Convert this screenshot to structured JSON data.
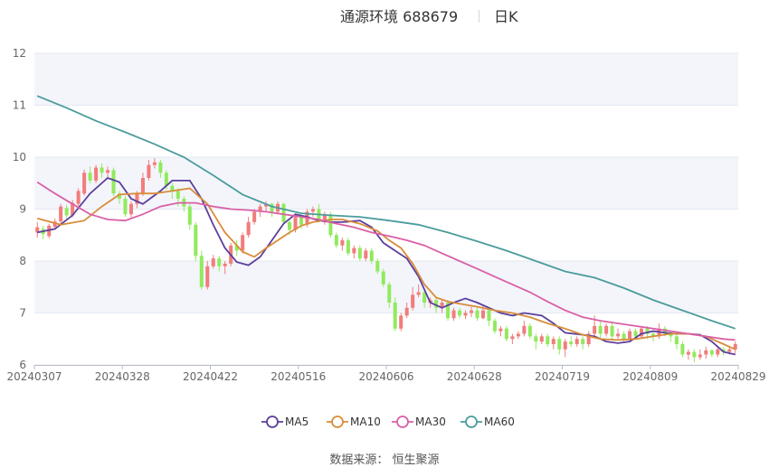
{
  "header": {
    "title": "通源环境 688679",
    "period": "日K"
  },
  "source_text": "数据来源： 恒生聚源",
  "colors": {
    "up": "#f27c7c",
    "down": "#91ea5e",
    "band": "#f3f5fb",
    "grid": "#e4e8f2",
    "ma5": "#5b3f9c",
    "ma10": "#d98c3a",
    "ma30": "#d960a6",
    "ma60": "#4b9c9c"
  },
  "chart_data": {
    "type": "candlestick",
    "ylim": [
      6,
      12
    ],
    "yticks": [
      6,
      7,
      8,
      9,
      10,
      11,
      12
    ],
    "xticks": [
      "20240307",
      "20240328",
      "20240422",
      "20240516",
      "20240606",
      "20240628",
      "20240719",
      "20240809",
      "20240829"
    ],
    "num_days": 120,
    "candles": [
      [
        8.55,
        8.65,
        8.75,
        8.45
      ],
      [
        8.62,
        8.52,
        8.68,
        8.42
      ],
      [
        8.48,
        8.68,
        8.72,
        8.44
      ],
      [
        8.66,
        8.76,
        8.82,
        8.6
      ],
      [
        8.76,
        9.05,
        9.1,
        8.72
      ],
      [
        9.02,
        8.88,
        9.08,
        8.82
      ],
      [
        8.88,
        9.12,
        9.18,
        8.84
      ],
      [
        9.1,
        9.35,
        9.4,
        9.06
      ],
      [
        9.3,
        9.7,
        9.76,
        9.26
      ],
      [
        9.7,
        9.55,
        9.82,
        9.5
      ],
      [
        9.55,
        9.8,
        9.85,
        9.5
      ],
      [
        9.8,
        9.7,
        9.88,
        9.6
      ],
      [
        9.7,
        9.75,
        9.82,
        9.6
      ],
      [
        9.75,
        9.3,
        9.8,
        9.25
      ],
      [
        9.3,
        9.2,
        9.35,
        9.1
      ],
      [
        9.2,
        8.9,
        9.25,
        8.85
      ],
      [
        8.9,
        9.1,
        9.15,
        8.84
      ],
      [
        9.1,
        9.3,
        9.35,
        9.02
      ],
      [
        9.3,
        9.6,
        9.7,
        9.25
      ],
      [
        9.6,
        9.85,
        9.95,
        9.55
      ],
      [
        9.85,
        9.9,
        9.98,
        9.78
      ],
      [
        9.9,
        9.7,
        9.95,
        9.6
      ],
      [
        9.7,
        9.45,
        9.75,
        9.38
      ],
      [
        9.45,
        9.35,
        9.5,
        9.2
      ],
      [
        9.35,
        9.2,
        9.4,
        9.05
      ],
      [
        9.2,
        9.05,
        9.25,
        8.95
      ],
      [
        9.05,
        8.7,
        9.1,
        8.6
      ],
      [
        8.7,
        8.1,
        8.75,
        8.0
      ],
      [
        8.1,
        7.5,
        8.2,
        7.45
      ],
      [
        7.5,
        7.9,
        8.0,
        7.45
      ],
      [
        7.9,
        8.05,
        8.12,
        7.85
      ],
      [
        8.05,
        7.9,
        8.1,
        7.8
      ],
      [
        7.9,
        7.95,
        8.0,
        7.75
      ],
      [
        7.95,
        8.3,
        8.35,
        7.9
      ],
      [
        8.3,
        8.2,
        8.4,
        8.1
      ],
      [
        8.2,
        8.5,
        8.55,
        8.15
      ],
      [
        8.5,
        8.75,
        8.85,
        8.45
      ],
      [
        8.75,
        8.95,
        9.0,
        8.7
      ],
      [
        8.95,
        9.05,
        9.1,
        8.85
      ],
      [
        9.05,
        9.1,
        9.15,
        8.95
      ],
      [
        9.1,
        8.95,
        9.12,
        8.85
      ],
      [
        8.95,
        9.1,
        9.15,
        8.9
      ],
      [
        9.1,
        8.75,
        9.12,
        8.7
      ],
      [
        8.75,
        8.6,
        8.8,
        8.5
      ],
      [
        8.6,
        8.85,
        8.9,
        8.55
      ],
      [
        8.85,
        8.7,
        8.9,
        8.62
      ],
      [
        8.7,
        8.95,
        9.0,
        8.65
      ],
      [
        8.95,
        9.0,
        9.05,
        8.85
      ],
      [
        9.0,
        8.8,
        9.1,
        8.75
      ],
      [
        8.8,
        8.9,
        8.95,
        8.7
      ],
      [
        8.9,
        8.5,
        8.95,
        8.45
      ],
      [
        8.5,
        8.3,
        8.55,
        8.25
      ],
      [
        8.3,
        8.4,
        8.45,
        8.2
      ],
      [
        8.4,
        8.15,
        8.45,
        8.1
      ],
      [
        8.15,
        8.25,
        8.3,
        8.05
      ],
      [
        8.25,
        8.05,
        8.3,
        8.0
      ],
      [
        8.05,
        8.2,
        8.25,
        8.0
      ],
      [
        8.2,
        8.0,
        8.25,
        7.95
      ],
      [
        8.0,
        7.8,
        8.05,
        7.75
      ],
      [
        7.8,
        7.55,
        7.85,
        7.5
      ],
      [
        7.55,
        7.2,
        7.6,
        7.1
      ],
      [
        7.2,
        6.7,
        7.3,
        6.65
      ],
      [
        6.7,
        6.95,
        7.0,
        6.65
      ],
      [
        6.95,
        7.1,
        7.2,
        6.9
      ],
      [
        7.1,
        7.35,
        7.5,
        7.05
      ],
      [
        7.35,
        7.4,
        7.55,
        7.3
      ],
      [
        7.4,
        7.2,
        7.45,
        7.1
      ],
      [
        7.2,
        7.25,
        7.3,
        7.1
      ],
      [
        7.25,
        7.1,
        7.3,
        7.0
      ],
      [
        7.1,
        7.2,
        7.25,
        7.0
      ],
      [
        7.2,
        6.9,
        7.25,
        6.85
      ],
      [
        6.9,
        7.05,
        7.1,
        6.85
      ],
      [
        7.05,
        6.95,
        7.1,
        6.9
      ],
      [
        6.95,
        7.0,
        7.05,
        6.88
      ],
      [
        7.0,
        7.05,
        7.12,
        6.92
      ],
      [
        7.05,
        6.9,
        7.1,
        6.85
      ],
      [
        6.9,
        7.05,
        7.15,
        6.88
      ],
      [
        7.05,
        6.85,
        7.1,
        6.75
      ],
      [
        6.85,
        6.65,
        6.9,
        6.6
      ],
      [
        6.65,
        6.7,
        6.75,
        6.55
      ],
      [
        6.7,
        6.5,
        6.75,
        6.45
      ],
      [
        6.5,
        6.55,
        6.6,
        6.4
      ],
      [
        6.55,
        6.6,
        6.65,
        6.5
      ],
      [
        6.6,
        6.75,
        6.85,
        6.55
      ],
      [
        6.75,
        6.55,
        6.8,
        6.5
      ],
      [
        6.55,
        6.45,
        6.6,
        6.3
      ],
      [
        6.45,
        6.55,
        6.6,
        6.4
      ],
      [
        6.55,
        6.4,
        6.6,
        6.35
      ],
      [
        6.4,
        6.5,
        6.55,
        6.3
      ],
      [
        6.5,
        6.3,
        6.55,
        6.2
      ],
      [
        6.3,
        6.45,
        6.5,
        6.15
      ],
      [
        6.45,
        6.4,
        6.55,
        6.35
      ],
      [
        6.4,
        6.5,
        6.55,
        6.35
      ],
      [
        6.5,
        6.4,
        6.55,
        6.3
      ],
      [
        6.4,
        6.6,
        6.65,
        6.35
      ],
      [
        6.6,
        6.75,
        6.95,
        6.55
      ],
      [
        6.75,
        6.6,
        6.85,
        6.5
      ],
      [
        6.6,
        6.75,
        6.8,
        6.55
      ],
      [
        6.75,
        6.55,
        6.8,
        6.5
      ],
      [
        6.55,
        6.6,
        6.7,
        6.5
      ],
      [
        6.6,
        6.5,
        6.65,
        6.45
      ],
      [
        6.5,
        6.65,
        6.7,
        6.45
      ],
      [
        6.65,
        6.55,
        6.7,
        6.5
      ],
      [
        6.55,
        6.7,
        6.75,
        6.5
      ],
      [
        6.7,
        6.6,
        6.75,
        6.5
      ],
      [
        6.6,
        6.55,
        6.65,
        6.45
      ],
      [
        6.55,
        6.7,
        6.8,
        6.5
      ],
      [
        6.7,
        6.6,
        6.75,
        6.55
      ],
      [
        6.6,
        6.55,
        6.65,
        6.45
      ],
      [
        6.55,
        6.4,
        6.6,
        6.3
      ],
      [
        6.4,
        6.2,
        6.45,
        6.15
      ],
      [
        6.2,
        6.25,
        6.3,
        6.1
      ],
      [
        6.25,
        6.15,
        6.3,
        6.05
      ],
      [
        6.15,
        6.2,
        6.3,
        6.1
      ],
      [
        6.2,
        6.28,
        6.35,
        6.12
      ],
      [
        6.28,
        6.2,
        6.3,
        6.15
      ],
      [
        6.2,
        6.3,
        6.35,
        6.15
      ],
      [
        6.3,
        6.25,
        6.35,
        6.18
      ],
      [
        6.25,
        6.3,
        6.35,
        6.2
      ],
      [
        6.3,
        6.4,
        6.45,
        6.22
      ]
    ],
    "series": [
      {
        "name": "MA5",
        "key": "ma5",
        "points": [
          [
            0,
            8.55
          ],
          [
            3,
            8.62
          ],
          [
            6,
            8.88
          ],
          [
            9,
            9.3
          ],
          [
            12,
            9.6
          ],
          [
            14,
            9.52
          ],
          [
            16,
            9.2
          ],
          [
            18,
            9.1
          ],
          [
            21,
            9.35
          ],
          [
            23,
            9.55
          ],
          [
            26,
            9.55
          ],
          [
            28,
            9.2
          ],
          [
            30,
            8.7
          ],
          [
            32,
            8.25
          ],
          [
            34,
            7.98
          ],
          [
            36,
            7.92
          ],
          [
            38,
            8.08
          ],
          [
            40,
            8.4
          ],
          [
            42,
            8.72
          ],
          [
            44,
            8.9
          ],
          [
            46,
            8.85
          ],
          [
            48,
            8.78
          ],
          [
            50,
            8.75
          ],
          [
            52,
            8.75
          ],
          [
            55,
            8.78
          ],
          [
            57,
            8.65
          ],
          [
            59,
            8.35
          ],
          [
            61,
            8.2
          ],
          [
            63,
            8.05
          ],
          [
            65,
            7.7
          ],
          [
            67,
            7.2
          ],
          [
            69,
            7.1
          ],
          [
            71,
            7.2
          ],
          [
            73,
            7.28
          ],
          [
            75,
            7.2
          ],
          [
            77,
            7.1
          ],
          [
            79,
            7.0
          ],
          [
            81,
            6.95
          ],
          [
            83,
            7.0
          ],
          [
            86,
            6.95
          ],
          [
            88,
            6.8
          ],
          [
            90,
            6.62
          ],
          [
            93,
            6.58
          ],
          [
            95,
            6.55
          ],
          [
            97,
            6.45
          ],
          [
            99,
            6.42
          ],
          [
            101,
            6.45
          ],
          [
            103,
            6.6
          ],
          [
            105,
            6.65
          ],
          [
            107,
            6.62
          ],
          [
            109,
            6.6
          ],
          [
            111,
            6.6
          ],
          [
            113,
            6.58
          ],
          [
            115,
            6.45
          ],
          [
            117,
            6.25
          ],
          [
            119,
            6.2
          ]
        ]
      },
      {
        "name": "MA10",
        "key": "ma10",
        "points": [
          [
            0,
            8.82
          ],
          [
            4,
            8.7
          ],
          [
            8,
            8.78
          ],
          [
            11,
            9.05
          ],
          [
            14,
            9.28
          ],
          [
            17,
            9.3
          ],
          [
            20,
            9.3
          ],
          [
            23,
            9.35
          ],
          [
            26,
            9.4
          ],
          [
            29,
            9.1
          ],
          [
            32,
            8.55
          ],
          [
            35,
            8.18
          ],
          [
            37,
            8.08
          ],
          [
            39,
            8.25
          ],
          [
            41,
            8.4
          ],
          [
            43,
            8.55
          ],
          [
            45,
            8.68
          ],
          [
            47,
            8.75
          ],
          [
            50,
            8.8
          ],
          [
            52,
            8.8
          ],
          [
            55,
            8.72
          ],
          [
            58,
            8.58
          ],
          [
            60,
            8.4
          ],
          [
            62,
            8.25
          ],
          [
            64,
            7.95
          ],
          [
            66,
            7.55
          ],
          [
            68,
            7.3
          ],
          [
            70,
            7.22
          ],
          [
            72,
            7.18
          ],
          [
            75,
            7.12
          ],
          [
            78,
            7.05
          ],
          [
            81,
            7.0
          ],
          [
            84,
            6.92
          ],
          [
            87,
            6.8
          ],
          [
            90,
            6.7
          ],
          [
            93,
            6.58
          ],
          [
            96,
            6.5
          ],
          [
            99,
            6.48
          ],
          [
            102,
            6.5
          ],
          [
            105,
            6.55
          ],
          [
            108,
            6.6
          ],
          [
            111,
            6.6
          ],
          [
            114,
            6.55
          ],
          [
            117,
            6.4
          ],
          [
            119,
            6.3
          ]
        ]
      },
      {
        "name": "MA30",
        "key": "ma30",
        "points": [
          [
            0,
            9.52
          ],
          [
            3,
            9.3
          ],
          [
            6,
            9.1
          ],
          [
            9,
            8.9
          ],
          [
            12,
            8.8
          ],
          [
            15,
            8.78
          ],
          [
            18,
            8.9
          ],
          [
            21,
            9.05
          ],
          [
            24,
            9.12
          ],
          [
            27,
            9.12
          ],
          [
            30,
            9.05
          ],
          [
            33,
            9.0
          ],
          [
            36,
            8.98
          ],
          [
            39,
            8.95
          ],
          [
            42,
            8.9
          ],
          [
            45,
            8.85
          ],
          [
            48,
            8.8
          ],
          [
            51,
            8.72
          ],
          [
            54,
            8.65
          ],
          [
            57,
            8.55
          ],
          [
            60,
            8.48
          ],
          [
            63,
            8.4
          ],
          [
            66,
            8.3
          ],
          [
            69,
            8.15
          ],
          [
            72,
            8.0
          ],
          [
            75,
            7.85
          ],
          [
            78,
            7.7
          ],
          [
            81,
            7.55
          ],
          [
            84,
            7.4
          ],
          [
            87,
            7.22
          ],
          [
            90,
            7.05
          ],
          [
            93,
            6.92
          ],
          [
            96,
            6.85
          ],
          [
            99,
            6.8
          ],
          [
            102,
            6.75
          ],
          [
            105,
            6.7
          ],
          [
            108,
            6.65
          ],
          [
            111,
            6.6
          ],
          [
            114,
            6.55
          ],
          [
            117,
            6.5
          ],
          [
            119,
            6.48
          ]
        ]
      },
      {
        "name": "MA60",
        "key": "ma60",
        "points": [
          [
            0,
            11.18
          ],
          [
            5,
            10.95
          ],
          [
            10,
            10.7
          ],
          [
            15,
            10.48
          ],
          [
            20,
            10.25
          ],
          [
            25,
            10.0
          ],
          [
            30,
            9.65
          ],
          [
            35,
            9.28
          ],
          [
            40,
            9.05
          ],
          [
            45,
            8.92
          ],
          [
            50,
            8.88
          ],
          [
            55,
            8.85
          ],
          [
            60,
            8.78
          ],
          [
            65,
            8.7
          ],
          [
            70,
            8.55
          ],
          [
            75,
            8.38
          ],
          [
            80,
            8.2
          ],
          [
            85,
            8.0
          ],
          [
            90,
            7.8
          ],
          [
            95,
            7.68
          ],
          [
            100,
            7.48
          ],
          [
            105,
            7.25
          ],
          [
            110,
            7.05
          ],
          [
            115,
            6.85
          ],
          [
            119,
            6.7
          ]
        ]
      }
    ],
    "legend": [
      {
        "name": "MA5",
        "key": "ma5"
      },
      {
        "name": "MA10",
        "key": "ma10"
      },
      {
        "name": "MA30",
        "key": "ma30"
      },
      {
        "name": "MA60",
        "key": "ma60"
      }
    ],
    "legend_position": "bottom",
    "grid": true
  }
}
